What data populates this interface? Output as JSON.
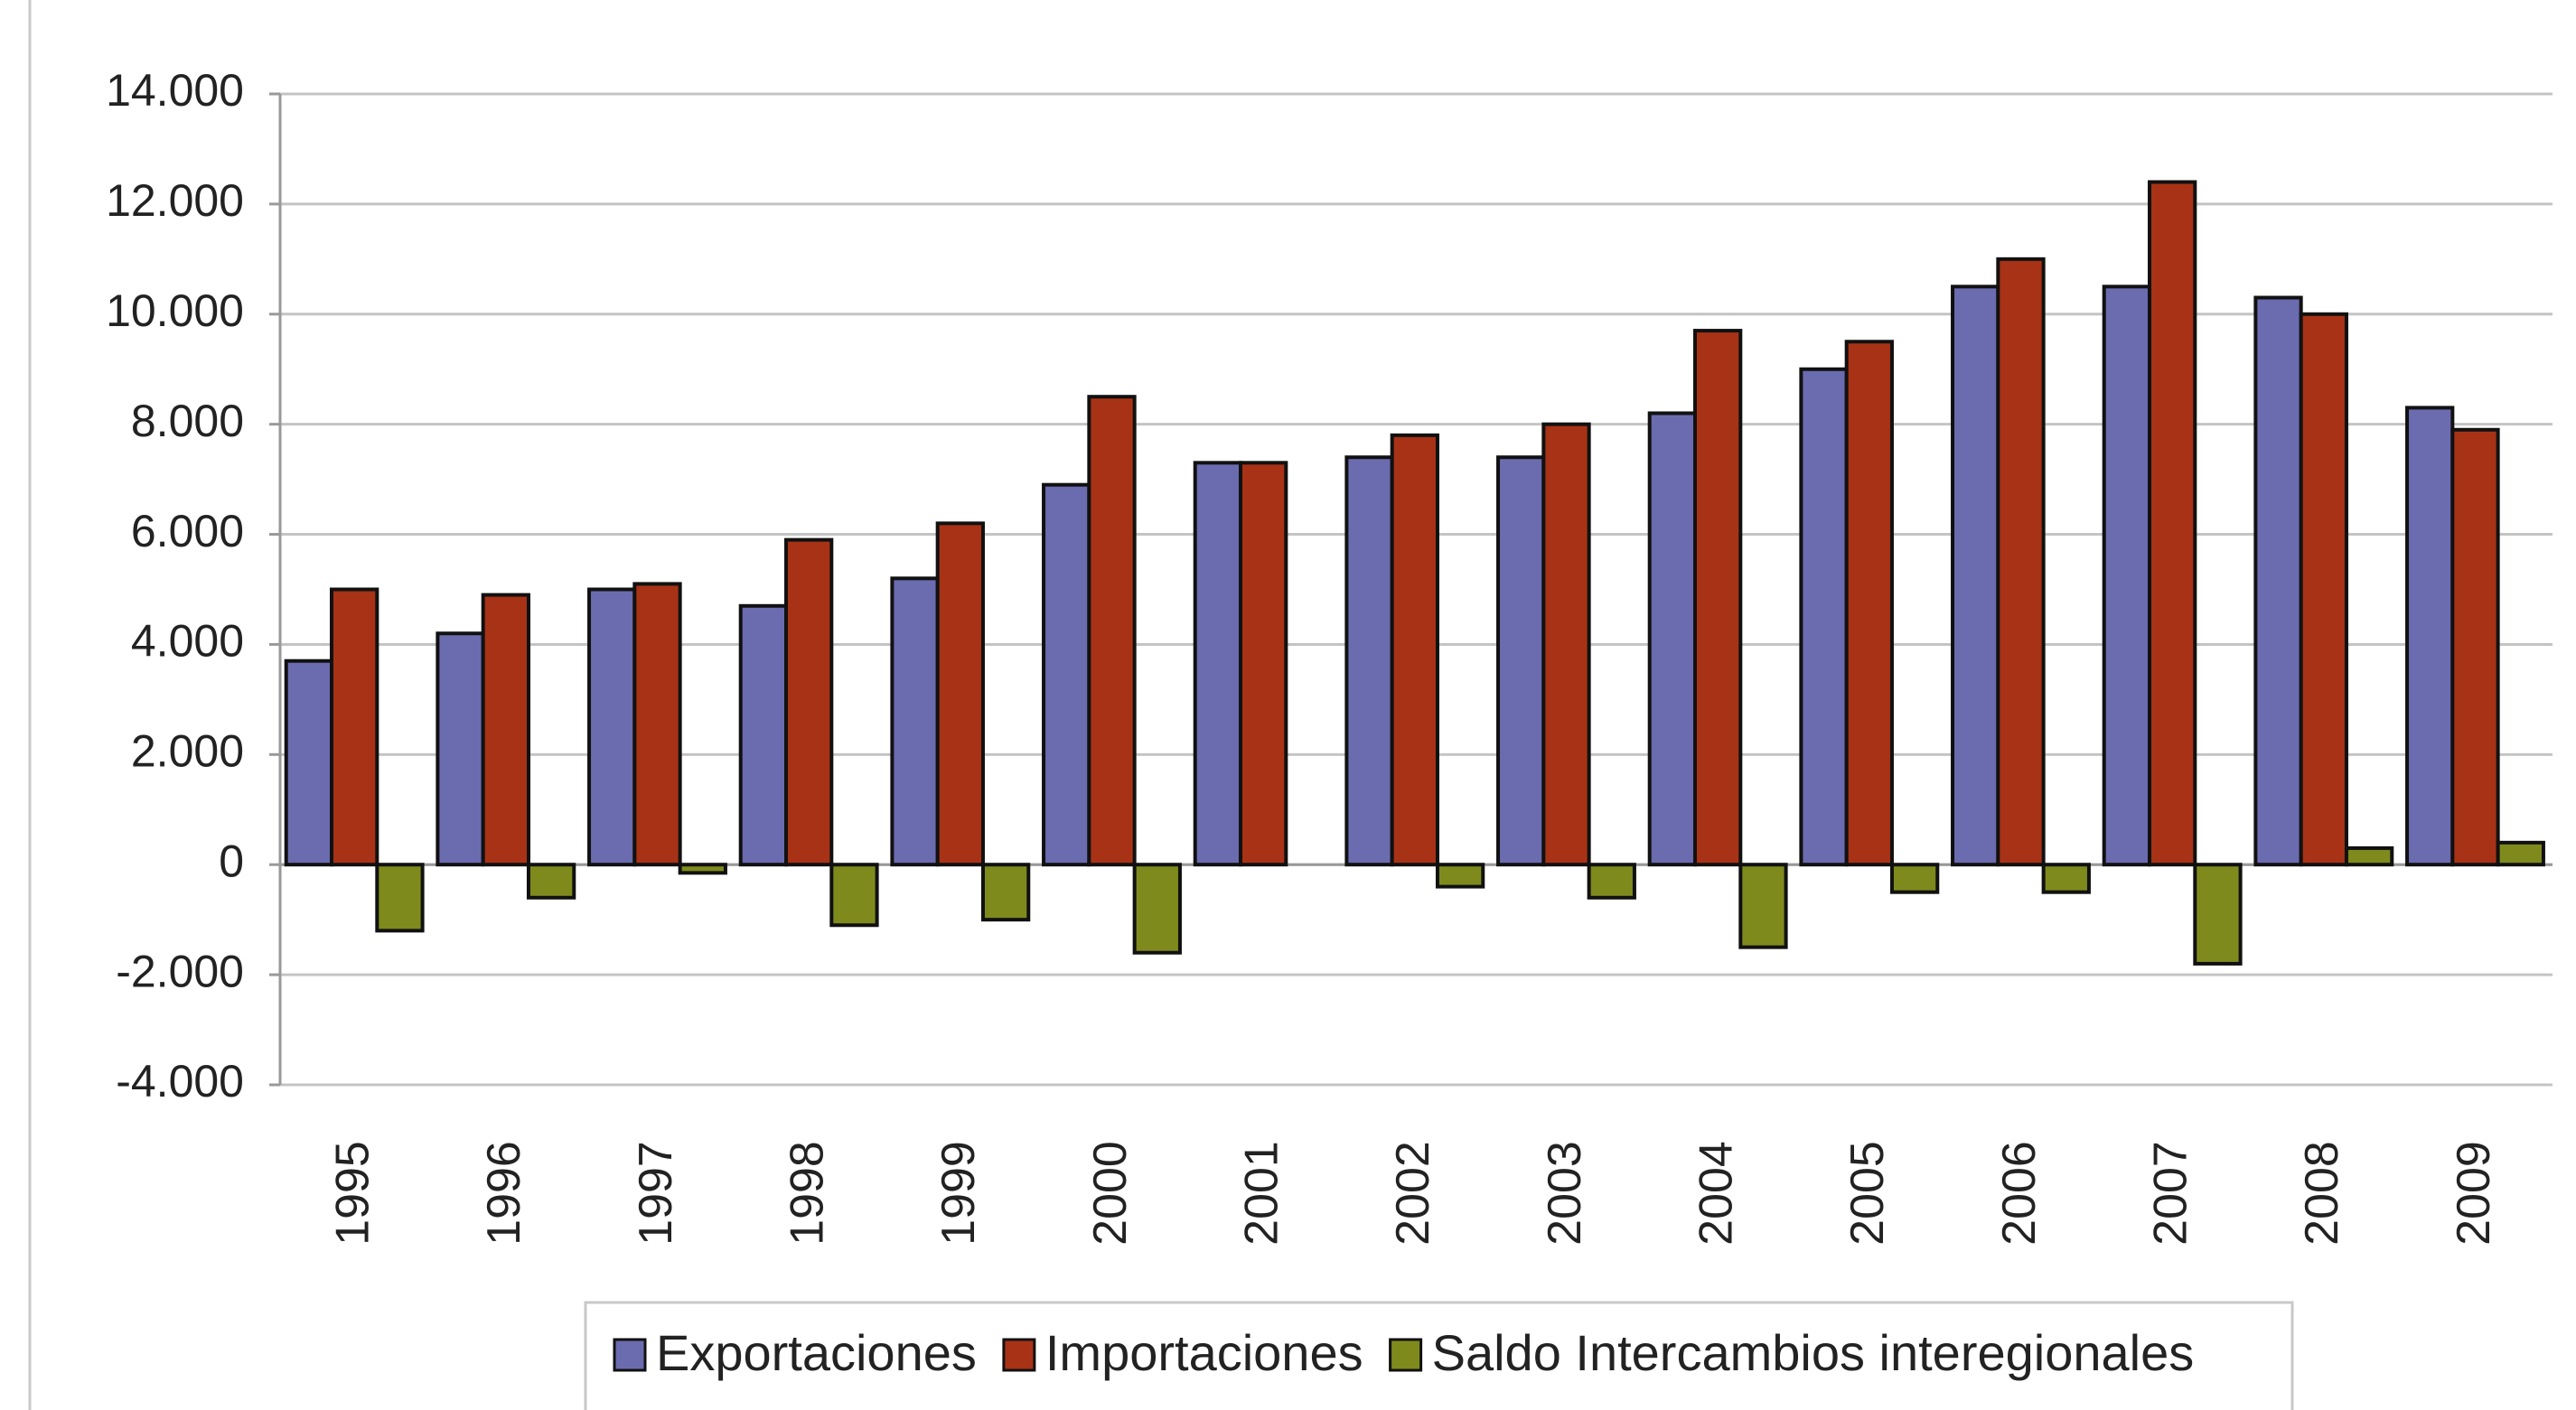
{
  "chart_data": {
    "type": "bar",
    "categories": [
      "1995",
      "1996",
      "1997",
      "1998",
      "1999",
      "2000",
      "2001",
      "2002",
      "2003",
      "2004",
      "2005",
      "2006",
      "2007",
      "2008",
      "2009"
    ],
    "series": [
      {
        "name": "Exportaciones",
        "color": "#6b6bb0",
        "values": [
          3700,
          4200,
          5000,
          4700,
          5200,
          6900,
          7300,
          7400,
          7400,
          8200,
          9000,
          10500,
          10500,
          10300,
          8300
        ]
      },
      {
        "name": "Importaciones",
        "color": "#a83216",
        "values": [
          5000,
          4900,
          5100,
          5900,
          6200,
          8500,
          7300,
          7800,
          8000,
          9700,
          9500,
          11000,
          12400,
          10000,
          7900
        ]
      },
      {
        "name": "Saldo Intercambios interegionales",
        "color": "#7f8a1d",
        "values": [
          -1200,
          -600,
          -150,
          -1100,
          -1000,
          -1600,
          0,
          -400,
          -600,
          -1500,
          -500,
          -500,
          -1800,
          300,
          400
        ]
      }
    ],
    "ylim": [
      -4000,
      14000
    ],
    "yticks": [
      {
        "value": -4000,
        "label": "-4.000"
      },
      {
        "value": -2000,
        "label": "-2.000"
      },
      0,
      {
        "value": 2000,
        "label": "2.000"
      },
      {
        "value": 4000,
        "label": "4.000"
      },
      {
        "value": 6000,
        "label": "6.000"
      },
      {
        "value": 8000,
        "label": "8.000"
      },
      {
        "value": 10000,
        "label": "10.000"
      },
      {
        "value": 12000,
        "label": "12.000"
      },
      {
        "value": 14000,
        "label": "14.000"
      }
    ],
    "grid": true,
    "legend": "bottom"
  }
}
